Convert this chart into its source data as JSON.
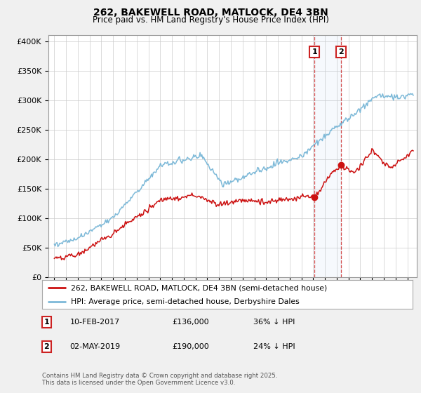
{
  "title1": "262, BAKEWELL ROAD, MATLOCK, DE4 3BN",
  "title2": "Price paid vs. HM Land Registry's House Price Index (HPI)",
  "ylabel_vals": [
    0,
    50000,
    100000,
    150000,
    200000,
    250000,
    300000,
    350000,
    400000
  ],
  "ylabel_labels": [
    "£0",
    "£50K",
    "£100K",
    "£150K",
    "£200K",
    "£250K",
    "£300K",
    "£350K",
    "£400K"
  ],
  "hpi_color": "#7db9d8",
  "price_color": "#cc1111",
  "vline_color": "#cc2222",
  "sale1_x": 2017.1,
  "sale2_x": 2019.37,
  "sale1_y": 136000,
  "sale2_y": 190000,
  "sale1": {
    "date": "10-FEB-2017",
    "price": 136000,
    "pct": "36% ↓ HPI"
  },
  "sale2": {
    "date": "02-MAY-2019",
    "price": 190000,
    "pct": "24% ↓ HPI"
  },
  "legend1": "262, BAKEWELL ROAD, MATLOCK, DE4 3BN (semi-detached house)",
  "legend2": "HPI: Average price, semi-detached house, Derbyshire Dales",
  "footnote": "Contains HM Land Registry data © Crown copyright and database right 2025.\nThis data is licensed under the Open Government Licence v3.0.",
  "xlim": [
    1994.5,
    2025.8
  ],
  "ylim": [
    0,
    410000
  ],
  "bg_color": "#f0f0f0",
  "plot_bg": "#ffffff",
  "grid_color": "#cccccc"
}
